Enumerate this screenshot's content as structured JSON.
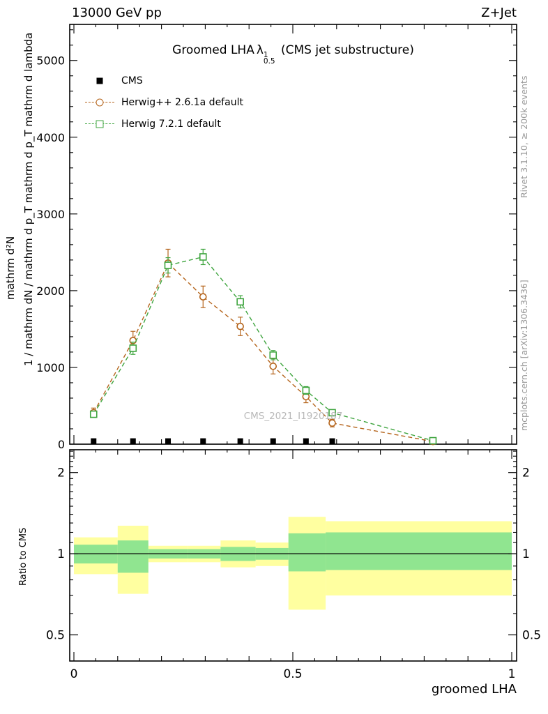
{
  "header": {
    "left": "13000 GeV pp",
    "right": "Z+Jet"
  },
  "plot_title": {
    "text": "Groomed LHA",
    "lambda": "λ",
    "lambda_sup": "1",
    "lambda_sub": "0.5",
    "suffix": " (CMS jet substructure)"
  },
  "side_notes": {
    "right_top": "Rivet 3.1.10, ≥ 200k events",
    "right_bottom": "mcplots.cern.ch [arXiv:1306.3436]"
  },
  "watermark": "CMS_2021_I1920187",
  "axis_labels": {
    "y_line1": "mathrm d²N",
    "y_line2": "1 / mathrm dN / mathrm d p_T mathrm d p_T mathrm d lambda",
    "x": "groomed LHA",
    "ratio_y": "Ratio to CMS"
  },
  "legend": {
    "items": [
      {
        "label": "CMS",
        "marker": "filled-square",
        "color": "#000000",
        "line": false
      },
      {
        "label": "Herwig++ 2.6.1a default",
        "marker": "open-circle",
        "color": "#b5651d",
        "line": true
      },
      {
        "label": "Herwig 7.2.1 default",
        "marker": "open-square",
        "color": "#3fa53f",
        "line": true
      }
    ]
  },
  "colors": {
    "cms": "#000000",
    "herwigpp": "#b5651d",
    "herwig7": "#3fa53f",
    "band_yellow": "#ffffa0",
    "band_green": "#90e590",
    "frame": "#000000",
    "side_text": "#999999",
    "watermark": "#b9b9b9"
  },
  "chart_data": {
    "type": "line",
    "title": "Groomed LHA λ^1_0.5 (CMS jet substructure)",
    "xlabel": "groomed LHA",
    "ylabel": "1 / mathrm dN / mathrm d p_T  mathrm d²N / mathrm d p_T mathrm d lambda",
    "xlim": [
      -0.01,
      1.01
    ],
    "ylim": [
      0,
      5470
    ],
    "grid": false,
    "legend_position": "top-left",
    "x_ticks": [
      {
        "v": 0,
        "label": "0"
      },
      {
        "v": 0.5,
        "label": "0.5"
      },
      {
        "v": 1,
        "label": "1"
      }
    ],
    "y_ticks": [
      {
        "v": 0,
        "label": "0"
      },
      {
        "v": 1000,
        "label": "1000"
      },
      {
        "v": 2000,
        "label": "2000"
      },
      {
        "v": 3000,
        "label": "3000"
      },
      {
        "v": 4000,
        "label": "4000"
      },
      {
        "v": 5000,
        "label": "5000"
      }
    ],
    "series": [
      {
        "name": "CMS",
        "role": "data",
        "marker": "filled-square",
        "color": "#000000",
        "line": false,
        "x": [
          0.045,
          0.135,
          0.215,
          0.295,
          0.38,
          0.455,
          0.53,
          0.59
        ],
        "y": [
          40,
          40,
          40,
          40,
          40,
          40,
          40,
          40
        ]
      },
      {
        "name": "Herwig++ 2.6.1a default",
        "role": "mc",
        "marker": "open-circle",
        "color": "#b5651d",
        "line": true,
        "linestyle": "dashed",
        "x": [
          0.045,
          0.135,
          0.215,
          0.295,
          0.38,
          0.455,
          0.53,
          0.59,
          0.82
        ],
        "y": [
          410,
          1350,
          2360,
          1920,
          1535,
          1015,
          620,
          275,
          35
        ],
        "yerr": [
          60,
          120,
          180,
          140,
          120,
          100,
          80,
          50,
          15
        ]
      },
      {
        "name": "Herwig 7.2.1 default",
        "role": "mc",
        "marker": "open-square",
        "color": "#3fa53f",
        "line": true,
        "linestyle": "dashed",
        "x": [
          0.045,
          0.135,
          0.215,
          0.295,
          0.38,
          0.455,
          0.53,
          0.59,
          0.82
        ],
        "y": [
          390,
          1250,
          2330,
          2440,
          1855,
          1160,
          700,
          410,
          45
        ],
        "yerr": [
          40,
          80,
          100,
          100,
          80,
          60,
          50,
          35,
          10
        ]
      }
    ],
    "ratio": {
      "ylabel": "Ratio to CMS",
      "scale": "log",
      "ylim": [
        0.4,
        2.43
      ],
      "refline": 1,
      "ticks": [
        {
          "v": 0.5,
          "label": "0.5"
        },
        {
          "v": 1,
          "label": "1"
        },
        {
          "v": 2,
          "label": "2"
        }
      ],
      "bands": [
        {
          "x0": 0.0,
          "x1": 0.1,
          "yellow": [
            0.84,
            1.15
          ],
          "green": [
            0.92,
            1.08
          ]
        },
        {
          "x0": 0.1,
          "x1": 0.17,
          "yellow": [
            0.71,
            1.27
          ],
          "green": [
            0.85,
            1.12
          ]
        },
        {
          "x0": 0.17,
          "x1": 0.26,
          "yellow": [
            0.93,
            1.07
          ],
          "green": [
            0.96,
            1.04
          ]
        },
        {
          "x0": 0.26,
          "x1": 0.335,
          "yellow": [
            0.93,
            1.07
          ],
          "green": [
            0.96,
            1.04
          ]
        },
        {
          "x0": 0.335,
          "x1": 0.415,
          "yellow": [
            0.89,
            1.12
          ],
          "green": [
            0.94,
            1.06
          ]
        },
        {
          "x0": 0.415,
          "x1": 0.49,
          "yellow": [
            0.9,
            1.1
          ],
          "green": [
            0.95,
            1.05
          ]
        },
        {
          "x0": 0.49,
          "x1": 0.575,
          "yellow": [
            0.62,
            1.37
          ],
          "green": [
            0.86,
            1.19
          ]
        },
        {
          "x0": 0.575,
          "x1": 1.0,
          "yellow": [
            0.7,
            1.32
          ],
          "green": [
            0.87,
            1.2
          ]
        }
      ]
    }
  }
}
